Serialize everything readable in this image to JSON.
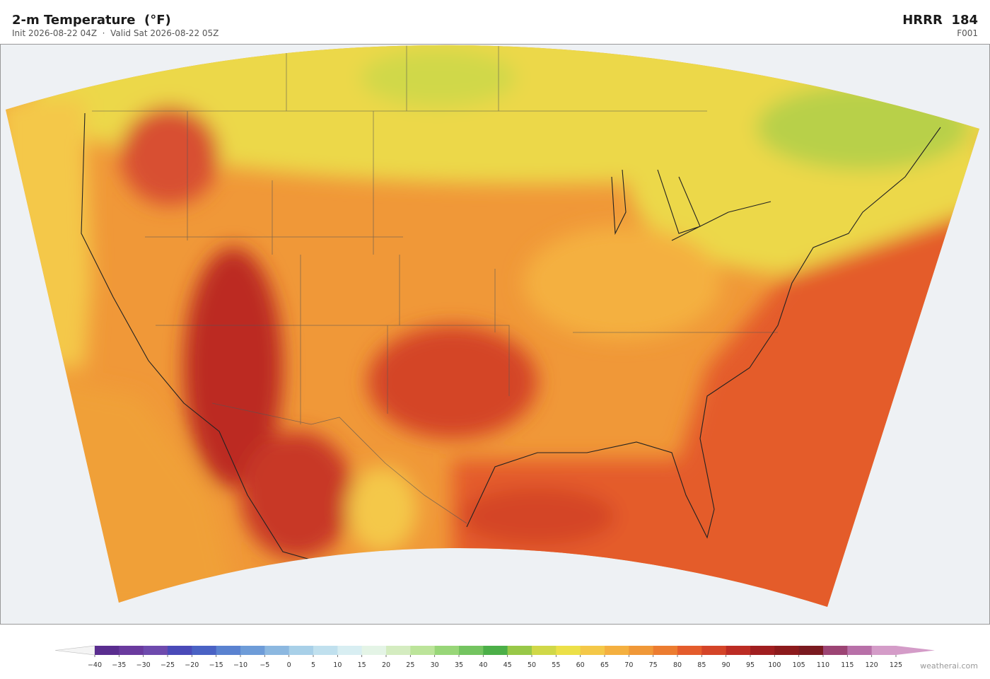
{
  "header": {
    "title": "2-m Temperature  (°F)",
    "subtitle": "Init 2026-08-22 04Z  ·  Valid Sat 2026-08-22 05Z",
    "model": "HRRR  184",
    "forecast_hour": "F001"
  },
  "colorbar": {
    "ticks": [
      {
        "value": -40,
        "label": "−40"
      },
      {
        "value": -35,
        "label": "−35"
      },
      {
        "value": -30,
        "label": "−30"
      },
      {
        "value": -25,
        "label": "−25"
      },
      {
        "value": -20,
        "label": "−20"
      },
      {
        "value": -15,
        "label": "−15"
      },
      {
        "value": -10,
        "label": "−10"
      },
      {
        "value": -5,
        "label": "−5"
      },
      0,
      5,
      10,
      15,
      20,
      25,
      30,
      35,
      40,
      45,
      50,
      55,
      60,
      65,
      70,
      75,
      80,
      85,
      90,
      95,
      100,
      105,
      110,
      115,
      120,
      125
    ],
    "colors": [
      "#5a2d8f",
      "#6a3a9e",
      "#6e4aad",
      "#4a4ab8",
      "#4a62c4",
      "#5a82d0",
      "#6e9cd8",
      "#8cb8e0",
      "#a8d0e8",
      "#c0e0ee",
      "#d8eef2",
      "#e4f4e6",
      "#d4ecc0",
      "#bce49a",
      "#98d678",
      "#74c460",
      "#4caf48",
      "#98c848",
      "#d0d848",
      "#ece048",
      "#f4c848",
      "#f4b040",
      "#f09838",
      "#ec7c30",
      "#e45c2c",
      "#d44428",
      "#bc2c24",
      "#a01e20",
      "#8c1a1c",
      "#7a1a20",
      "#9c4474",
      "#b870a8",
      "#d49cc8"
    ],
    "extend_colors": [
      "#f4f4f4",
      "#d49cc8"
    ]
  },
  "footer": {
    "watermark": "weatherai.com"
  }
}
